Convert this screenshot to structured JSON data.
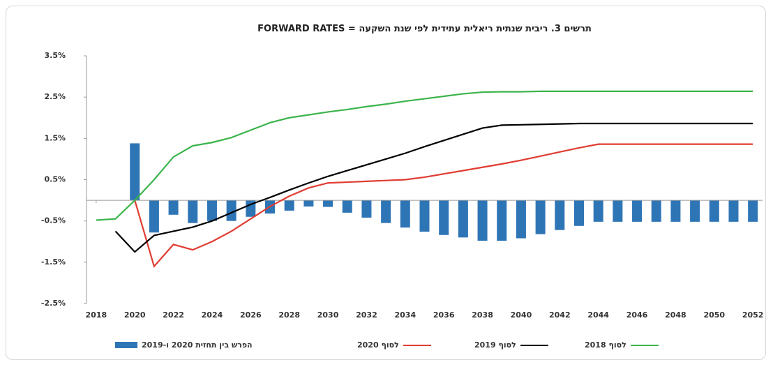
{
  "chart_data": {
    "type": "bar-line",
    "title": "תרשים 3. ריבית שנתית ריאלית עתידית לפי שנת השקעה = FORWARD RATES",
    "x": [
      2018,
      2019,
      2020,
      2021,
      2022,
      2023,
      2024,
      2025,
      2026,
      2027,
      2028,
      2029,
      2030,
      2031,
      2032,
      2033,
      2034,
      2035,
      2036,
      2037,
      2038,
      2039,
      2040,
      2041,
      2042,
      2043,
      2044,
      2045,
      2046,
      2047,
      2048,
      2049,
      2050,
      2051,
      2052
    ],
    "xlim": [
      2017.5,
      2052.5
    ],
    "xticks": [
      2018,
      2020,
      2022,
      2024,
      2026,
      2028,
      2030,
      2032,
      2034,
      2036,
      2038,
      2040,
      2042,
      2044,
      2046,
      2048,
      2050,
      2052
    ],
    "ylim": [
      -2.5,
      3.5
    ],
    "yticks": [
      {
        "value": 3.5,
        "label": "3.5%"
      },
      {
        "value": 2.5,
        "label": "2.5%"
      },
      {
        "value": 1.5,
        "label": "1.5%"
      },
      {
        "value": 0.5,
        "label": "0.5%"
      },
      {
        "value": -0.5,
        "label": "-0.5%"
      },
      {
        "value": -1.5,
        "label": "-1.5%"
      },
      {
        "value": -2.5,
        "label": "-2.5%"
      }
    ],
    "grid": false,
    "series": [
      {
        "name": "הפרש בין תחזית 2020 ו-2019",
        "kind": "bar",
        "color": "#2e75b6",
        "values": [
          null,
          null,
          1.38,
          -0.78,
          -0.35,
          -0.55,
          -0.5,
          -0.5,
          -0.4,
          -0.32,
          -0.25,
          -0.15,
          -0.16,
          -0.3,
          -0.42,
          -0.55,
          -0.66,
          -0.76,
          -0.84,
          -0.9,
          -0.98,
          -0.98,
          -0.92,
          -0.82,
          -0.72,
          -0.62,
          -0.52,
          -0.52,
          -0.52,
          -0.52,
          -0.52,
          -0.52,
          -0.52,
          -0.52,
          -0.52
        ]
      },
      {
        "name": "לסוף 2020",
        "kind": "line",
        "color": "#e03c31",
        "values": [
          null,
          null,
          0.0,
          -1.6,
          -1.07,
          -1.2,
          -1.0,
          -0.75,
          -0.45,
          -0.15,
          0.1,
          0.3,
          0.42,
          0.44,
          0.46,
          0.48,
          0.5,
          0.56,
          0.64,
          0.72,
          0.8,
          0.88,
          0.97,
          1.07,
          1.17,
          1.27,
          1.36,
          1.36,
          1.36,
          1.36,
          1.36,
          1.36,
          1.36,
          1.36,
          1.36
        ]
      },
      {
        "name": "לסוף 2019",
        "kind": "line",
        "color": "#000000",
        "values": [
          null,
          -0.75,
          -1.25,
          -0.85,
          -0.75,
          -0.65,
          -0.5,
          -0.3,
          -0.1,
          0.07,
          0.25,
          0.42,
          0.58,
          0.72,
          0.86,
          1.0,
          1.14,
          1.3,
          1.45,
          1.6,
          1.75,
          1.82,
          1.83,
          1.84,
          1.85,
          1.86,
          1.86,
          1.86,
          1.86,
          1.86,
          1.86,
          1.86,
          1.86,
          1.86,
          1.86
        ]
      },
      {
        "name": "לסוף 2018",
        "kind": "line",
        "color": "#3cb44b",
        "values": [
          -0.48,
          -0.45,
          0.0,
          0.5,
          1.05,
          1.32,
          1.4,
          1.52,
          1.7,
          1.88,
          2.0,
          2.07,
          2.14,
          2.2,
          2.27,
          2.33,
          2.4,
          2.46,
          2.52,
          2.58,
          2.62,
          2.63,
          2.63,
          2.64,
          2.64,
          2.64,
          2.64,
          2.64,
          2.64,
          2.64,
          2.64,
          2.64,
          2.64,
          2.64,
          2.64
        ]
      }
    ]
  }
}
